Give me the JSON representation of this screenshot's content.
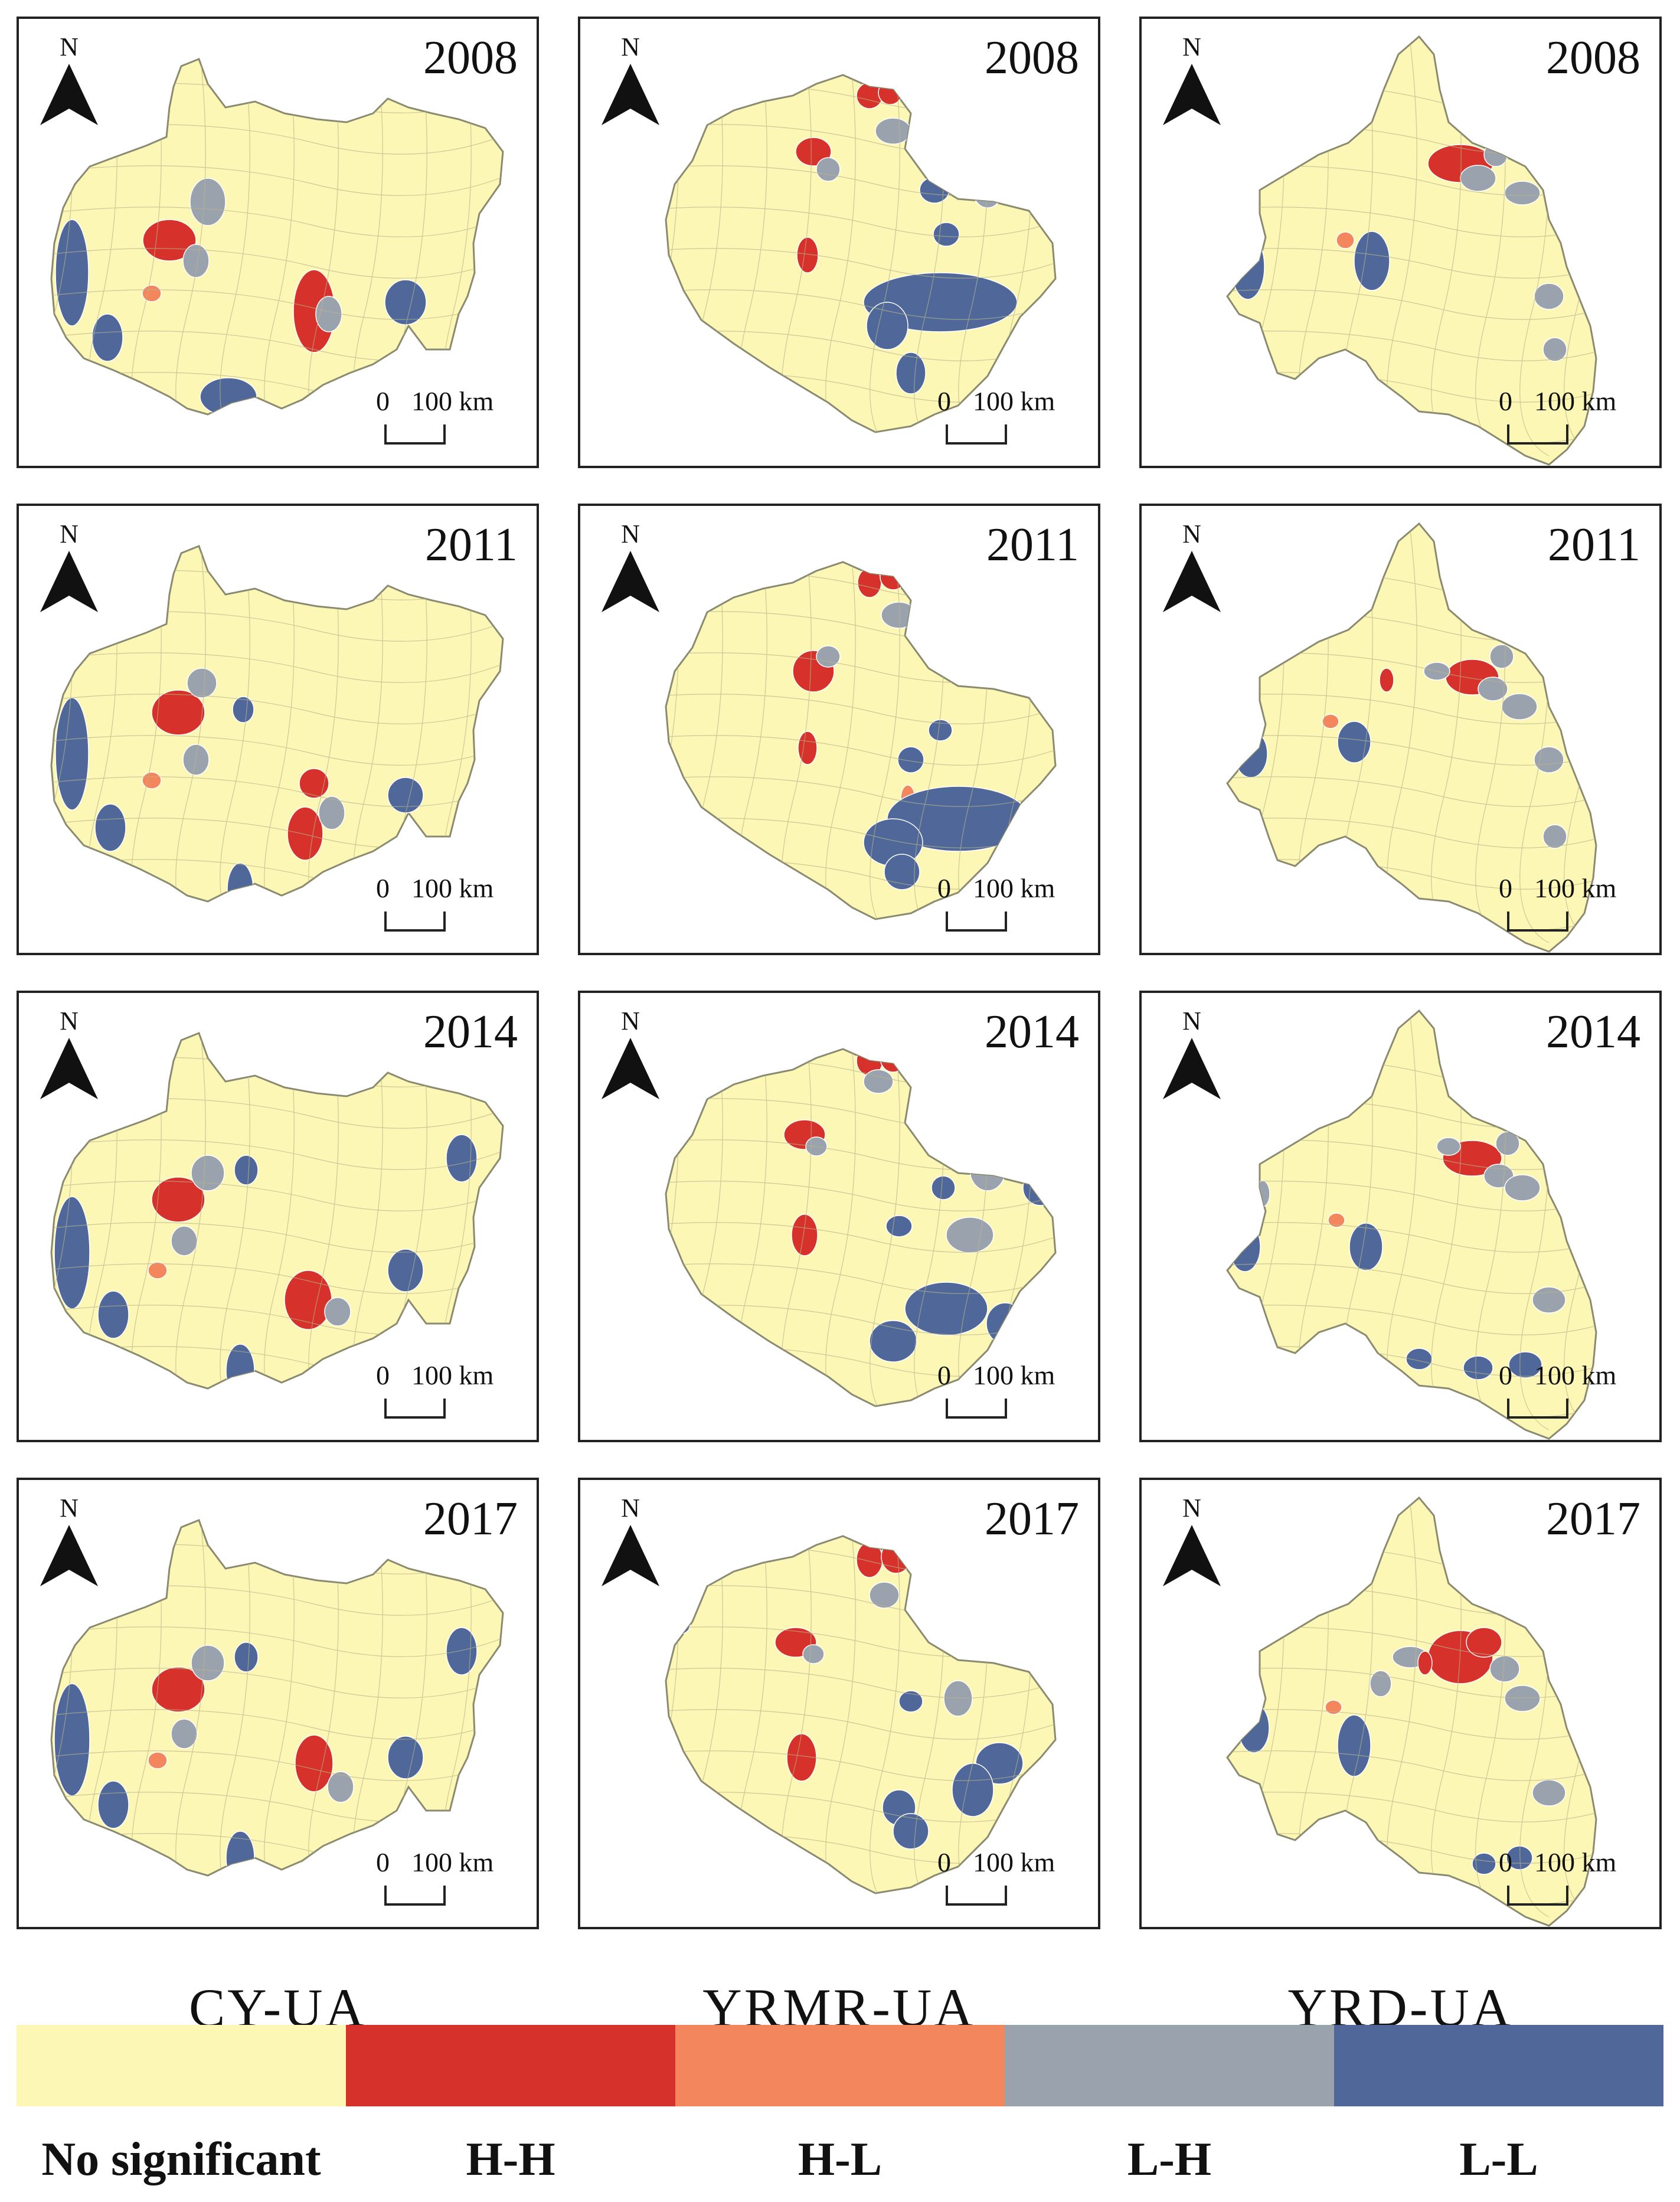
{
  "north_label": "N",
  "scale": {
    "zero": "0",
    "distance": "100 km"
  },
  "rows": [
    "2008",
    "2011",
    "2014",
    "2017"
  ],
  "columns": [
    {
      "name": "CY-UA",
      "shape": "cy"
    },
    {
      "name": "YRMR-UA",
      "shape": "yrmr"
    },
    {
      "name": "YRD-UA",
      "shape": "yrd"
    }
  ],
  "legend": [
    {
      "key": "ns",
      "label": "No significant",
      "color": "#fdf7b6"
    },
    {
      "key": "hh",
      "label": "H-H",
      "color": "#d6312a"
    },
    {
      "key": "hl",
      "label": "H-L",
      "color": "#f3865d"
    },
    {
      "key": "lh",
      "label": "L-H",
      "color": "#9aa3ad"
    },
    {
      "key": "ll",
      "label": "L-L",
      "color": "#4f6899"
    }
  ]
}
